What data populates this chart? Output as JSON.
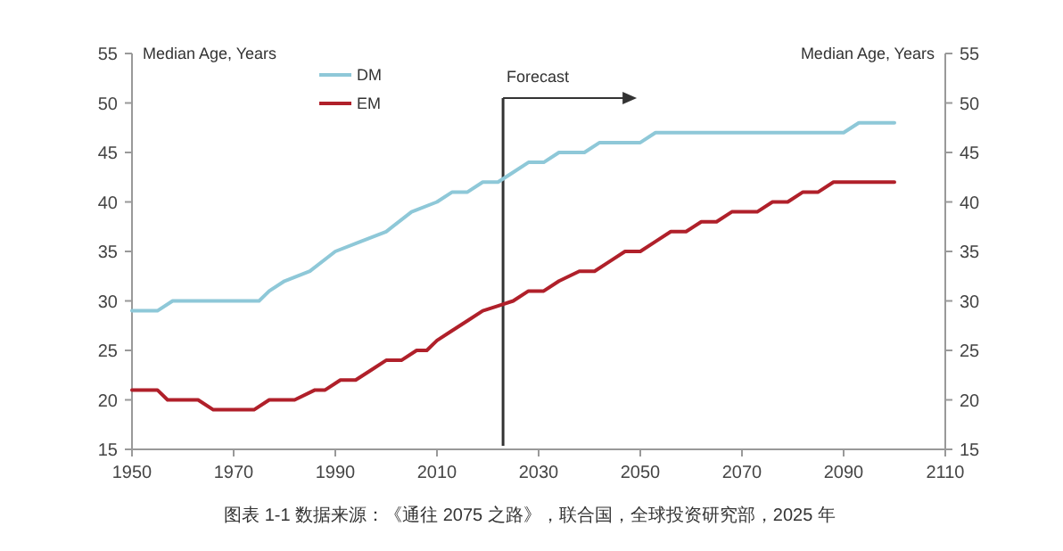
{
  "chart_data": {
    "type": "line",
    "ylabel": "Median Age, Years",
    "y2label": "Median Age, Years",
    "xlim": [
      1950,
      2110
    ],
    "xticks": [
      1950,
      1970,
      1990,
      2010,
      2030,
      2050,
      2070,
      2090,
      2110
    ],
    "ylim": [
      15,
      55
    ],
    "yticks": [
      15,
      20,
      25,
      30,
      35,
      40,
      45,
      50,
      55
    ],
    "y2lim": [
      15,
      55
    ],
    "y2ticks": [
      15,
      20,
      25,
      30,
      35,
      40,
      45,
      50,
      55
    ],
    "grid": false,
    "legend": "top left",
    "line_style": "solid",
    "marker": "none",
    "series": [
      {
        "name": "DM",
        "color": "#8ec8d8",
        "x": [
          1950,
          1955,
          1958,
          1975,
          1977,
          1980,
          1985,
          1990,
          1995,
          2000,
          2005,
          2010,
          2013,
          2016,
          2019,
          2022,
          2025,
          2028,
          2031,
          2034,
          2039,
          2042,
          2050,
          2053,
          2090,
          2093,
          2100
        ],
        "values": [
          29,
          29,
          30,
          30,
          31,
          32,
          33,
          35,
          36,
          37,
          39,
          40,
          41,
          41,
          42,
          42,
          43,
          44,
          44,
          45,
          45,
          46,
          46,
          47,
          47,
          48,
          48
        ]
      },
      {
        "name": "EM",
        "color": "#b0202a",
        "x": [
          1950,
          1955,
          1957,
          1963,
          1966,
          1974,
          1977,
          1982,
          1986,
          1988,
          1991,
          1994,
          1997,
          2000,
          2003,
          2006,
          2008,
          2010,
          2013,
          2016,
          2019,
          2022,
          2025,
          2028,
          2031,
          2034,
          2038,
          2041,
          2044,
          2047,
          2050,
          2053,
          2056,
          2059,
          2062,
          2065,
          2068,
          2073,
          2076,
          2079,
          2082,
          2085,
          2088,
          2100
        ],
        "values": [
          21,
          21,
          20,
          20,
          19,
          19,
          20,
          20,
          21,
          21,
          22,
          22,
          23,
          24,
          24,
          25,
          25,
          26,
          27,
          28,
          29,
          29.5,
          30,
          31,
          31,
          32,
          33,
          33,
          34,
          35,
          35,
          36,
          37,
          37,
          38,
          38,
          39,
          39,
          40,
          40,
          41,
          41,
          42,
          42
        ]
      }
    ],
    "ref_lines": [
      {
        "axis": "x",
        "value": 2023,
        "label": "Forecast",
        "color": "#333333"
      }
    ],
    "annotations": [
      "图表 1-1 数据来源：《通往 2075 之路》，联合国，全球投资研究部，2025 年"
    ]
  }
}
